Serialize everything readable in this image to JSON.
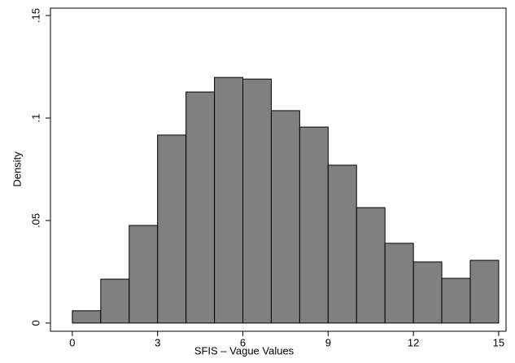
{
  "chart_data": {
    "type": "histogram",
    "x_label": "SFIS – Vague Values",
    "y_label": "Density",
    "bins": [
      0,
      1,
      2,
      3,
      4,
      5,
      6,
      7,
      8,
      9,
      10,
      11,
      12,
      13,
      14,
      15
    ],
    "values": [
      0.006,
      0.0214,
      0.0476,
      0.0917,
      0.1127,
      0.1198,
      0.119,
      0.1036,
      0.0956,
      0.077,
      0.0563,
      0.0389,
      0.0298,
      0.0218,
      0.0306
    ],
    "color": "#808080",
    "xlim": [
      -0.77,
      15.26
    ],
    "ylim": [
      -0.004,
      0.1536
    ],
    "xticks": [
      0,
      3,
      6,
      9,
      12,
      15
    ],
    "yticks": [
      0,
      {
        "value": 0.05,
        "label": ".05"
      },
      {
        "value": 0.1,
        "label": ".1"
      },
      {
        "value": 0.15,
        "label": ".15"
      }
    ]
  }
}
